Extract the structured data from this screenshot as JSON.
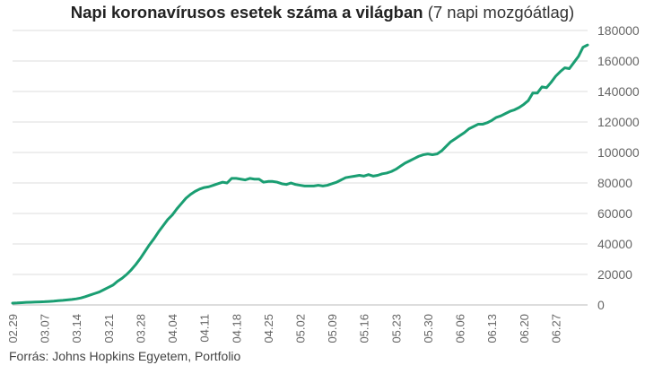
{
  "chart_data": {
    "type": "line",
    "title": "Napi koronavírusos esetek száma a világban",
    "subtitle": "(7 napi mozgóátlag)",
    "xlabel": "",
    "ylabel": "",
    "ylim": [
      0,
      180000
    ],
    "y_ticks": [
      0,
      20000,
      40000,
      60000,
      80000,
      100000,
      120000,
      140000,
      160000,
      180000
    ],
    "x_tick_labels": [
      "02.29",
      "03.07",
      "03.14",
      "03.21",
      "03.28",
      "04.04",
      "04.11",
      "04.18",
      "04.25",
      "05.02",
      "05.09",
      "05.16",
      "05.23",
      "05.30",
      "06.06",
      "06.13",
      "06.20",
      "06.27"
    ],
    "grid": true,
    "y_axis_side": "right",
    "line_color": "#1a9e72",
    "series": [
      {
        "values": [
          1200,
          1300,
          1500,
          1700,
          1800,
          1900,
          2000,
          2100,
          2300,
          2500,
          2800,
          3000,
          3300,
          3600,
          4000,
          4600,
          5500,
          6500,
          7500,
          8500,
          10000,
          11500,
          13000,
          15500,
          17500,
          20000,
          23000,
          26500,
          30500,
          35000,
          39500,
          43500,
          48000,
          52000,
          56000,
          59000,
          63000,
          66500,
          70000,
          72500,
          74500,
          76000,
          77000,
          77500,
          78500,
          79500,
          80500,
          80000,
          83000,
          83000,
          82500,
          82000,
          83000,
          82500,
          82500,
          80500,
          81000,
          81000,
          80500,
          79500,
          79000,
          80000,
          79000,
          78500,
          78000,
          78000,
          78000,
          78500,
          78000,
          78500,
          79500,
          80500,
          82000,
          83500,
          84000,
          84500,
          85000,
          84500,
          85500,
          84500,
          85000,
          86000,
          86500,
          87500,
          89000,
          91000,
          93000,
          94500,
          96000,
          97500,
          98500,
          99000,
          98500,
          99000,
          101000,
          104000,
          107000,
          109000,
          111000,
          113000,
          115500,
          117000,
          118500,
          118500,
          119500,
          121000,
          123000,
          124000,
          125500,
          127000,
          128000,
          129500,
          131500,
          134000,
          139000,
          139000,
          143000,
          142500,
          146000,
          150000,
          153000,
          155500,
          155000,
          159000,
          163000,
          169000,
          170500
        ]
      }
    ]
  },
  "source": "Forrás: Johns Hopkins Egyetem, Portfolio"
}
